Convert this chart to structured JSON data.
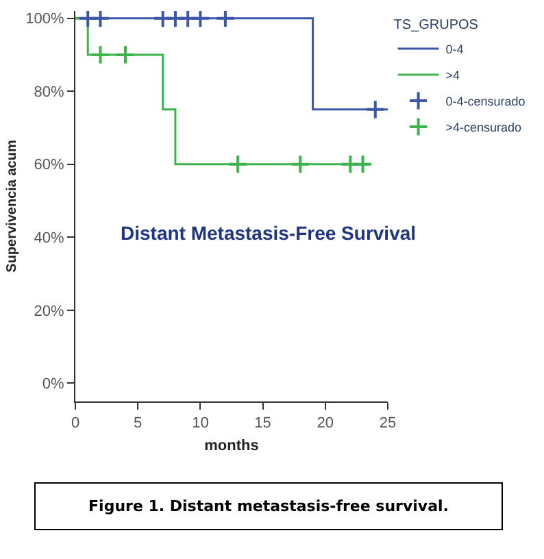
{
  "chart_data": {
    "type": "step",
    "xlabel": "months",
    "ylabel": "Supervivencia acum",
    "legend_title": "TS_GRUPOS",
    "annotations": [
      "Distant Metastasis-Free Survival",
      "Figure 1. Distant metastasis-free survival."
    ],
    "xlim": [
      0,
      25
    ],
    "xticks": [
      0,
      5,
      10,
      15,
      20,
      25
    ],
    "ylim": [
      -5,
      102
    ],
    "yticks": [
      {
        "value": 0,
        "label": "0%"
      },
      {
        "value": 20,
        "label": "20%"
      },
      {
        "value": 40,
        "label": "40%"
      },
      {
        "value": 60,
        "label": "60%"
      },
      {
        "value": 80,
        "label": "80%"
      },
      {
        "value": 100,
        "label": "100%"
      }
    ],
    "legend": "top right",
    "series": [
      {
        "name": "0-4",
        "color": "#3b57a8",
        "marker": "none",
        "x": [
          0,
          19,
          25
        ],
        "values": [
          100,
          75,
          75
        ]
      },
      {
        "name": ">4",
        "color": "#3cb44b",
        "marker": "none",
        "x": [
          0,
          1,
          7,
          8,
          23
        ],
        "values": [
          100,
          90,
          75,
          60,
          60
        ]
      },
      {
        "name": "0-4-censurado",
        "type": "scatter",
        "color": "#3b57a8",
        "marker": "cross",
        "x": [
          1,
          2,
          7,
          8,
          9,
          10,
          12,
          24
        ],
        "values": [
          100,
          100,
          100,
          100,
          100,
          100,
          100,
          75
        ]
      },
      {
        "name": ">4-censurado",
        "type": "scatter",
        "color": "#3cb44b",
        "marker": "cross",
        "x": [
          2,
          4,
          13,
          18,
          22,
          23
        ],
        "values": [
          90,
          90,
          60,
          60,
          60,
          60
        ]
      }
    ]
  }
}
